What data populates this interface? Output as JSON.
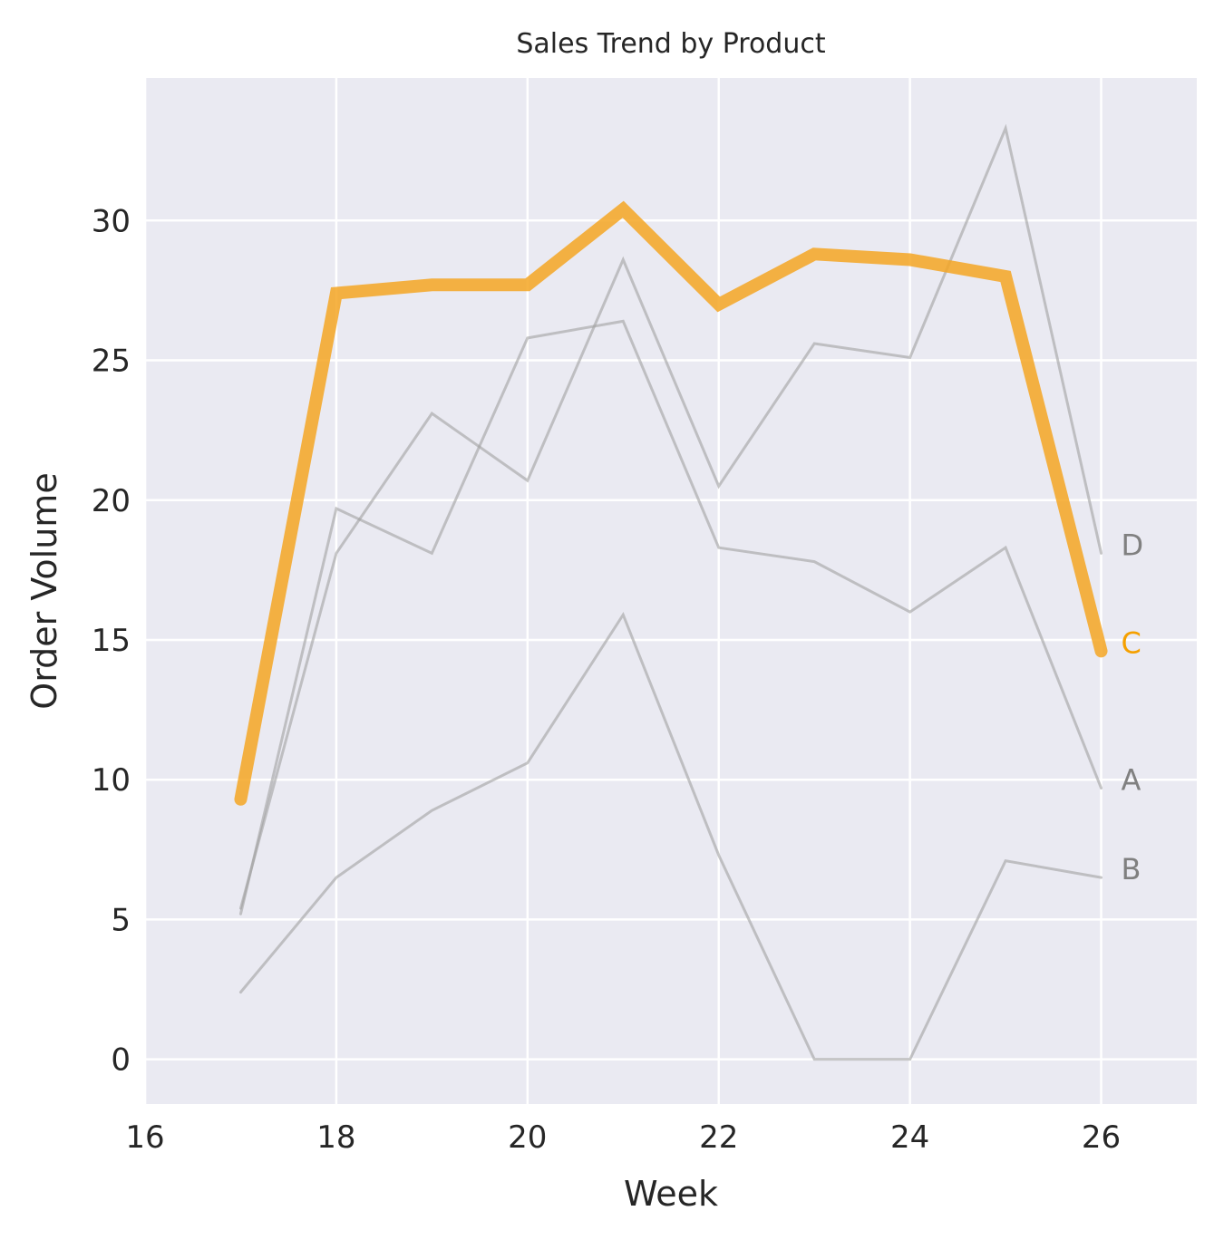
{
  "chart_data": {
    "type": "line",
    "title": "Sales Trend by Product",
    "xlabel": "Week",
    "ylabel": "Order Volume",
    "xlim": [
      16,
      27
    ],
    "ylim": [
      -1.6,
      35.1
    ],
    "xticks": [
      16,
      18,
      20,
      22,
      24,
      26
    ],
    "yticks": [
      0,
      5,
      10,
      15,
      20,
      25,
      30
    ],
    "grid": true,
    "highlight_series": "C",
    "colors": {
      "background": "#eaeaf2",
      "grid": "#ffffff",
      "highlight": "#f5a623",
      "muted": "#a0a0a0",
      "highlight_label": "#f5a000",
      "muted_label": "#808080"
    },
    "x": [
      17,
      18,
      19,
      20,
      21,
      22,
      23,
      24,
      25,
      26
    ],
    "series": [
      {
        "name": "A",
        "values": [
          5.2,
          19.7,
          18.1,
          25.8,
          26.4,
          18.3,
          17.8,
          16.0,
          18.3,
          9.7
        ]
      },
      {
        "name": "B",
        "values": [
          2.4,
          6.5,
          8.9,
          10.6,
          15.9,
          7.3,
          0.0,
          0.0,
          7.1,
          6.5
        ]
      },
      {
        "name": "C",
        "values": [
          9.3,
          27.4,
          27.7,
          27.7,
          30.4,
          27.0,
          28.8,
          28.6,
          28.0,
          14.6
        ]
      },
      {
        "name": "D",
        "values": [
          5.4,
          18.1,
          23.1,
          20.7,
          28.6,
          20.5,
          25.6,
          25.1,
          33.3,
          18.1
        ]
      }
    ]
  }
}
